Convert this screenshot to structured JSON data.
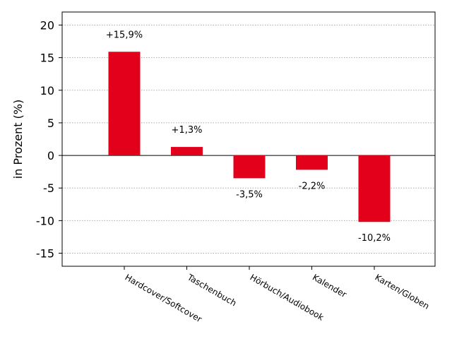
{
  "chart_data": {
    "type": "bar",
    "categories": [
      "Hardcover/Softcover",
      "Taschenbuch",
      "Hörbuch/Audiobook",
      "Kalender",
      "Karten/Globen"
    ],
    "values": [
      15.9,
      1.3,
      -3.5,
      -2.2,
      -10.2
    ],
    "data_labels": [
      "+15,9%",
      "+1,3%",
      "-3,5%",
      "-2,2%",
      "-10,2%"
    ],
    "ylabel": "in Prozent (%)",
    "xlabel": "",
    "ylim": [
      -17,
      22
    ],
    "yticks": [
      -15,
      -10,
      -5,
      0,
      5,
      10,
      15,
      20
    ],
    "grid": true,
    "bar_color": "#e3001b"
  }
}
